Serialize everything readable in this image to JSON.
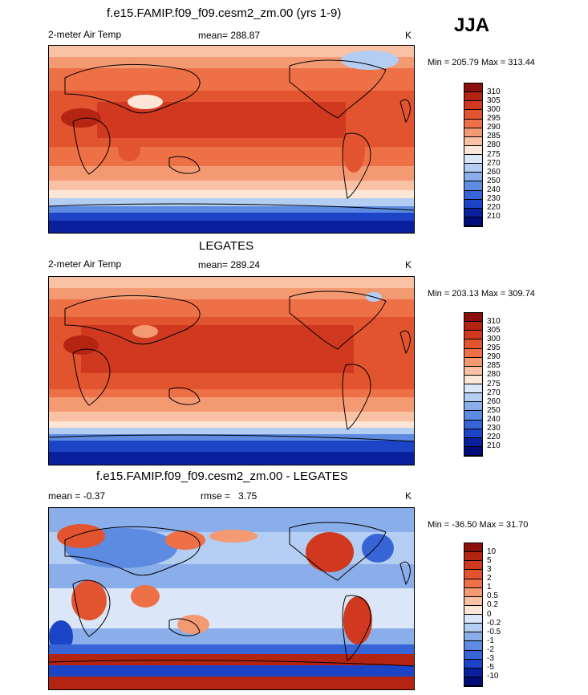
{
  "panels": [
    {
      "title": "f.e15.FAMIP.f09_f09.cesm2_zm.00 (yrs 1-9)",
      "left_label": "2-meter Air Temp",
      "stat_label": "mean= 288.87",
      "stat2_label": "",
      "unit": "K",
      "minmax": "Min = 205.79 Max = 313.44",
      "colorbar_labels": [
        "310",
        "305",
        "300",
        "295",
        "290",
        "285",
        "280",
        "275",
        "270",
        "260",
        "250",
        "240",
        "230",
        "220",
        "210"
      ],
      "colorbar_colors": [
        "#8b0f0a",
        "#b32511",
        "#d0391f",
        "#e2542f",
        "#ee7047",
        "#f49a73",
        "#f9c2a4",
        "#fde6d6",
        "#dbe7f8",
        "#b4cdf2",
        "#8aaeea",
        "#5d8be1",
        "#3765d6",
        "#1b44c6",
        "#0a1f9c",
        "#000c78"
      ]
    },
    {
      "title": "LEGATES",
      "left_label": "2-meter Air Temp",
      "stat_label": "mean= 289.24",
      "stat2_label": "",
      "unit": "K",
      "minmax": "Min = 203.13 Max = 309.74",
      "colorbar_labels": [
        "310",
        "305",
        "300",
        "295",
        "290",
        "285",
        "280",
        "275",
        "270",
        "260",
        "250",
        "240",
        "230",
        "220",
        "210"
      ],
      "colorbar_colors": [
        "#8b0f0a",
        "#b32511",
        "#d0391f",
        "#e2542f",
        "#ee7047",
        "#f49a73",
        "#f9c2a4",
        "#fde6d6",
        "#dbe7f8",
        "#b4cdf2",
        "#8aaeea",
        "#5d8be1",
        "#3765d6",
        "#1b44c6",
        "#0a1f9c",
        "#000c78"
      ]
    },
    {
      "title": "f.e15.FAMIP.f09_f09.cesm2_zm.00 - LEGATES",
      "left_label": "mean =  -0.37",
      "stat_label": "rmse =",
      "stat2_label": "3.75",
      "unit": "K",
      "minmax": "Min = -36.50 Max =  31.70",
      "colorbar_labels": [
        "10",
        "5",
        "3",
        "2",
        "1",
        "0.5",
        "0.2",
        "0",
        "-0.2",
        "-0.5",
        "-1",
        "-2",
        "-3",
        "-5",
        "-10"
      ],
      "colorbar_colors": [
        "#8b0f0a",
        "#b32511",
        "#d0391f",
        "#e2542f",
        "#ee7047",
        "#f49a73",
        "#f9c2a4",
        "#fde6d6",
        "#dbe7f8",
        "#b4cdf2",
        "#8aaeea",
        "#5d8be1",
        "#3765d6",
        "#1b44c6",
        "#0a1f9c",
        "#000c78"
      ]
    }
  ],
  "season": "JJA"
}
